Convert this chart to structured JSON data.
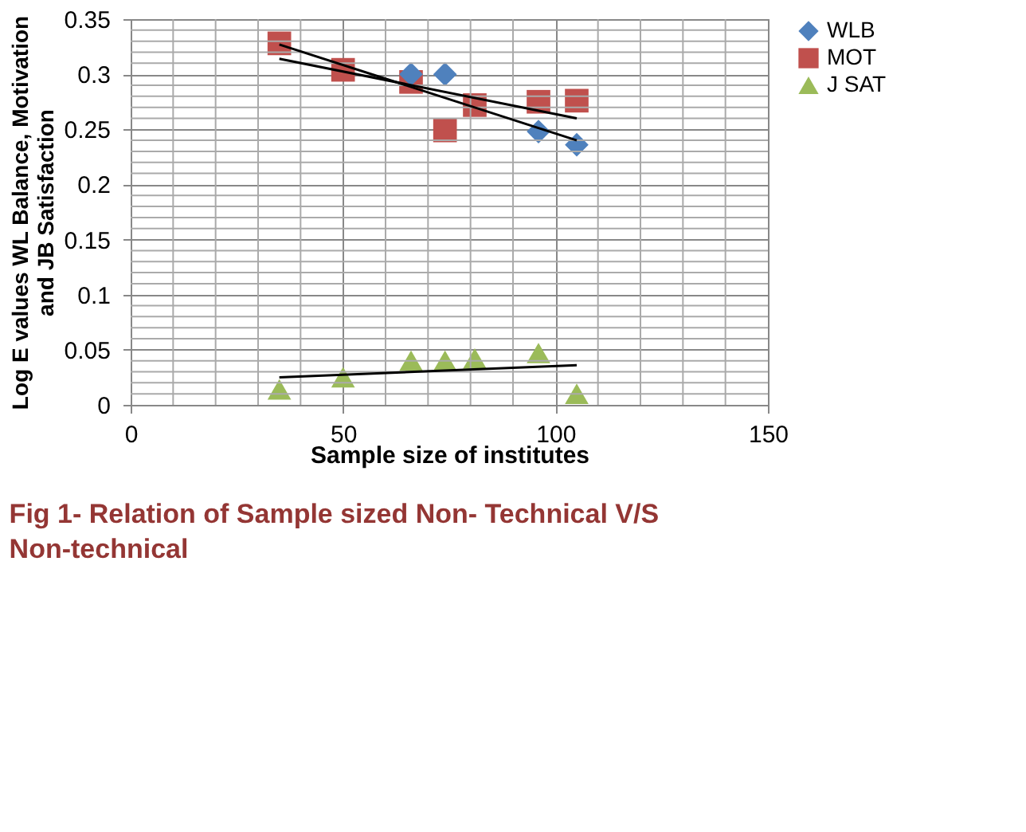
{
  "chart_data": {
    "type": "scatter",
    "title": "Fig 1- Relation of Sample sized Non- Technical V/S Non-technical",
    "xlabel": "Sample size of institutes",
    "ylabel": "Log E values WL Balance, Motivation and JB Satisfaction",
    "xlim": [
      0,
      150
    ],
    "xticks": [
      0,
      {
        "value": 10,
        "label": null
      },
      {
        "value": 20,
        "label": null
      },
      {
        "value": 30,
        "label": null
      },
      {
        "value": 40,
        "label": null
      },
      50,
      {
        "value": 60,
        "label": null
      },
      {
        "value": 70,
        "label": null
      },
      {
        "value": 80,
        "label": null
      },
      {
        "value": 90,
        "label": null
      },
      100,
      {
        "value": 110,
        "label": null
      },
      {
        "value": 120,
        "label": null
      },
      {
        "value": 130,
        "label": null
      },
      {
        "value": 140,
        "label": null
      },
      150
    ],
    "ylim": [
      0,
      0.35
    ],
    "yticks": [
      0,
      {
        "value": 0.01,
        "label": null
      },
      {
        "value": 0.02,
        "label": null
      },
      {
        "value": 0.03,
        "label": null
      },
      {
        "value": 0.04,
        "label": null
      },
      0.05,
      {
        "value": 0.06,
        "label": null
      },
      {
        "value": 0.07,
        "label": null
      },
      {
        "value": 0.08,
        "label": null
      },
      {
        "value": 0.09,
        "label": null
      },
      0.1,
      {
        "value": 0.11,
        "label": null
      },
      {
        "value": 0.12,
        "label": null
      },
      {
        "value": 0.13,
        "label": null
      },
      {
        "value": 0.14,
        "label": null
      },
      0.15,
      {
        "value": 0.16,
        "label": null
      },
      {
        "value": 0.17,
        "label": null
      },
      {
        "value": 0.18,
        "label": null
      },
      {
        "value": 0.19,
        "label": null
      },
      0.2,
      {
        "value": 0.21,
        "label": null
      },
      {
        "value": 0.22,
        "label": null
      },
      {
        "value": 0.23,
        "label": null
      },
      {
        "value": 0.24,
        "label": null
      },
      0.25,
      {
        "value": 0.26,
        "label": null
      },
      {
        "value": 0.27,
        "label": null
      },
      {
        "value": 0.28,
        "label": null
      },
      {
        "value": 0.29,
        "label": null
      },
      0.3,
      {
        "value": 0.31,
        "label": null
      },
      {
        "value": 0.32,
        "label": null
      },
      {
        "value": 0.33,
        "label": null
      },
      {
        "value": 0.34,
        "label": null
      },
      0.35
    ],
    "grid": true,
    "legend": "right",
    "series": [
      {
        "name": "WLB",
        "color": "#4f81bd",
        "marker": "diamond",
        "x": [
          66,
          74,
          96,
          105
        ],
        "values": [
          0.3,
          0.3,
          0.248,
          0.236
        ]
      },
      {
        "name": "MOT",
        "color": "#c0504d",
        "marker": "square",
        "x": [
          35,
          50,
          66,
          74,
          81,
          96,
          105
        ],
        "values": [
          0.328,
          0.304,
          0.293,
          0.249,
          0.272,
          0.275,
          0.276
        ]
      },
      {
        "name": "J SAT",
        "color": "#9bbb59",
        "marker": "triangle",
        "x": [
          35,
          50,
          66,
          74,
          81,
          96,
          105
        ],
        "values": [
          0.014,
          0.025,
          0.04,
          0.04,
          0.042,
          0.047,
          0.01
        ]
      },
      {
        "type": "line",
        "color": "#000000",
        "x": [
          35,
          105
        ],
        "values": [
          0.327,
          0.24
        ]
      },
      {
        "type": "line",
        "color": "#000000",
        "x": [
          35,
          105
        ],
        "values": [
          0.314,
          0.26
        ]
      },
      {
        "type": "line",
        "color": "#000000",
        "x": [
          35,
          105
        ],
        "values": [
          0.025,
          0.036
        ]
      }
    ]
  }
}
